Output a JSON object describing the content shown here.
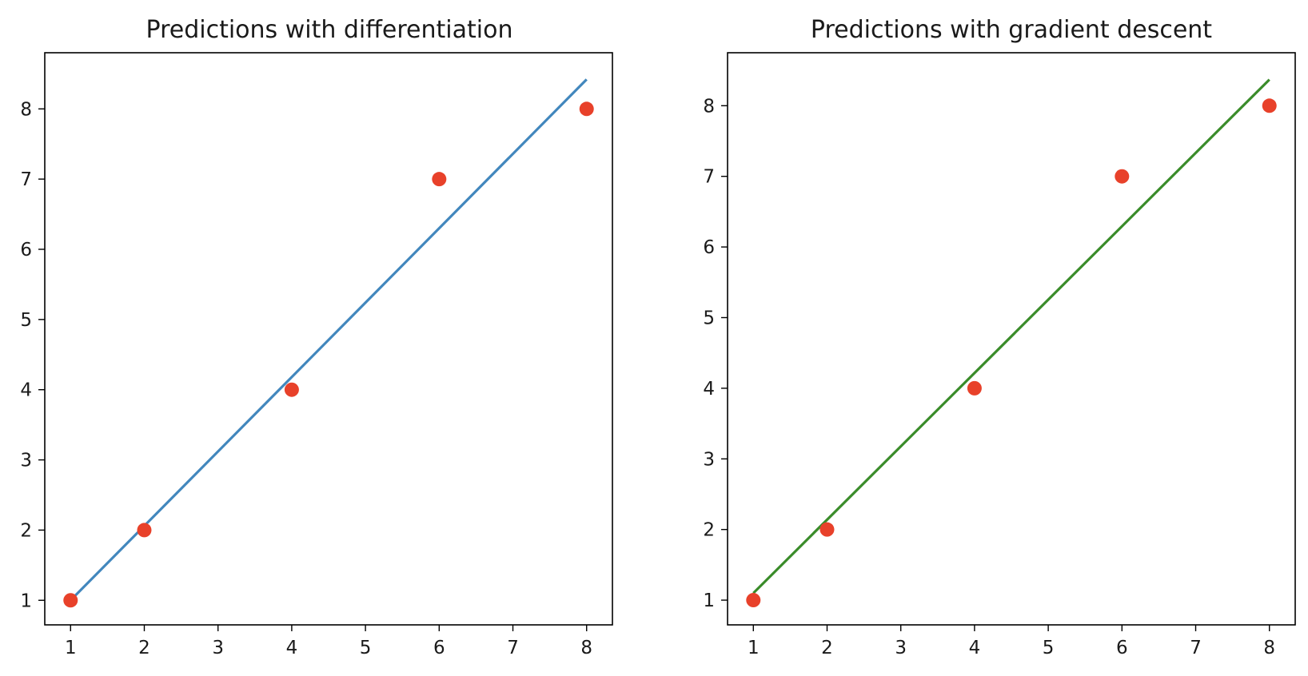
{
  "chart_data": [
    {
      "type": "scatter",
      "title": "Predictions with differentiation",
      "xlabel": "",
      "ylabel": "",
      "xlim": [
        0.65,
        8.35
      ],
      "ylim": [
        0.65,
        8.8
      ],
      "xticks": [
        1,
        2,
        3,
        4,
        5,
        6,
        7,
        8
      ],
      "yticks": [
        1,
        2,
        3,
        4,
        5,
        6,
        7,
        8
      ],
      "grid": false,
      "series": [
        {
          "kind": "line",
          "color": "#4287bd",
          "x": [
            1,
            8
          ],
          "y": [
            1.0,
            8.42
          ]
        },
        {
          "kind": "scatter",
          "color": "#e8412a",
          "x": [
            1,
            2,
            4,
            6,
            8
          ],
          "y": [
            1,
            2,
            4,
            7,
            8
          ]
        }
      ]
    },
    {
      "type": "scatter",
      "title": "Predictions with gradient descent",
      "xlabel": "",
      "ylabel": "",
      "xlim": [
        0.65,
        8.35
      ],
      "ylim": [
        0.65,
        8.75
      ],
      "xticks": [
        1,
        2,
        3,
        4,
        5,
        6,
        7,
        8
      ],
      "yticks": [
        1,
        2,
        3,
        4,
        5,
        6,
        7,
        8
      ],
      "grid": false,
      "series": [
        {
          "kind": "line",
          "color": "#3a8c2a",
          "x": [
            1,
            8
          ],
          "y": [
            1.1,
            8.37
          ]
        },
        {
          "kind": "scatter",
          "color": "#e8412a",
          "x": [
            1,
            2,
            4,
            6,
            8
          ],
          "y": [
            1,
            2,
            4,
            7,
            8
          ]
        }
      ]
    }
  ]
}
